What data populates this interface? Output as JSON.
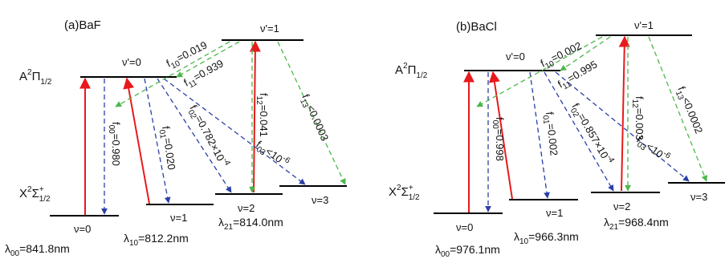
{
  "colors": {
    "upward": "#e8191c",
    "decay_blue": "#2a3fa6",
    "decay_green": "#4cb84a",
    "level": "#000000"
  },
  "panels": [
    {
      "panel_label": "(a)BaF",
      "upper_state": {
        "letter": "A",
        "sup": "2",
        "symbol": "Π",
        "sub": "1/2"
      },
      "lower_state": {
        "letter": "X",
        "sup": "2",
        "symbol": "Σ",
        "sup2": "+",
        "sub": "1/2"
      },
      "upper_levels": [
        "ν'=0",
        "ν'=1"
      ],
      "lower_levels": [
        "ν=0",
        "ν=1",
        "ν=2",
        "ν=3"
      ],
      "wavelengths": [
        {
          "lambda": "λ",
          "sub": "00",
          "value": "=841.8nm"
        },
        {
          "lambda": "λ",
          "sub": "10",
          "value": "=812.2nm"
        },
        {
          "lambda": "λ",
          "sub": "21",
          "value": "=814.0nm"
        }
      ],
      "factors": [
        {
          "f": "f",
          "sub": "00",
          "value": "=0.980"
        },
        {
          "f": "f",
          "sub": "01",
          "value": "=0.020"
        },
        {
          "f": "f",
          "sub": "02",
          "value": "=0.782×10",
          "sup": "-4"
        },
        {
          "f": "f",
          "sub": "03",
          "value": "<10",
          "sup": "-6"
        },
        {
          "f": "f",
          "sub": "10",
          "value": "=0.019"
        },
        {
          "f": "f",
          "sub": "11",
          "value": "=0.939"
        },
        {
          "f": "f",
          "sub": "12",
          "value": "=0.041"
        },
        {
          "f": "f",
          "sub": "13",
          "value": "<0.0003"
        }
      ]
    },
    {
      "panel_label": "(b)BaCl",
      "upper_state": {
        "letter": "A",
        "sup": "2",
        "symbol": "Π",
        "sub": "1/2"
      },
      "lower_state": {
        "letter": "X",
        "sup": "2",
        "symbol": "Σ",
        "sup2": "+",
        "sub": "1/2"
      },
      "upper_levels": [
        "ν'=0",
        "ν'=1"
      ],
      "lower_levels": [
        "ν=0",
        "ν=1",
        "ν=2",
        "ν=3"
      ],
      "wavelengths": [
        {
          "lambda": "λ",
          "sub": "00",
          "value": "=976.1nm"
        },
        {
          "lambda": "λ",
          "sub": "10",
          "value": "=966.3nm"
        },
        {
          "lambda": "λ",
          "sub": "21",
          "value": "=968.4nm"
        }
      ],
      "factors": [
        {
          "f": "f",
          "sub": "00",
          "value": "=0.998"
        },
        {
          "f": "f",
          "sub": "01",
          "value": "=0.002"
        },
        {
          "f": "f",
          "sub": "02",
          "value": "=0.857×10",
          "sup": "-4"
        },
        {
          "f": "f",
          "sub": "03",
          "value": "<10",
          "sup": "-6"
        },
        {
          "f": "f",
          "sub": "10",
          "value": "=0.002"
        },
        {
          "f": "f",
          "sub": "11",
          "value": "=0.995"
        },
        {
          "f": "f",
          "sub": "12",
          "value": "=0.003"
        },
        {
          "f": "f",
          "sub": "13",
          "value": "<0.0002"
        }
      ]
    }
  ]
}
